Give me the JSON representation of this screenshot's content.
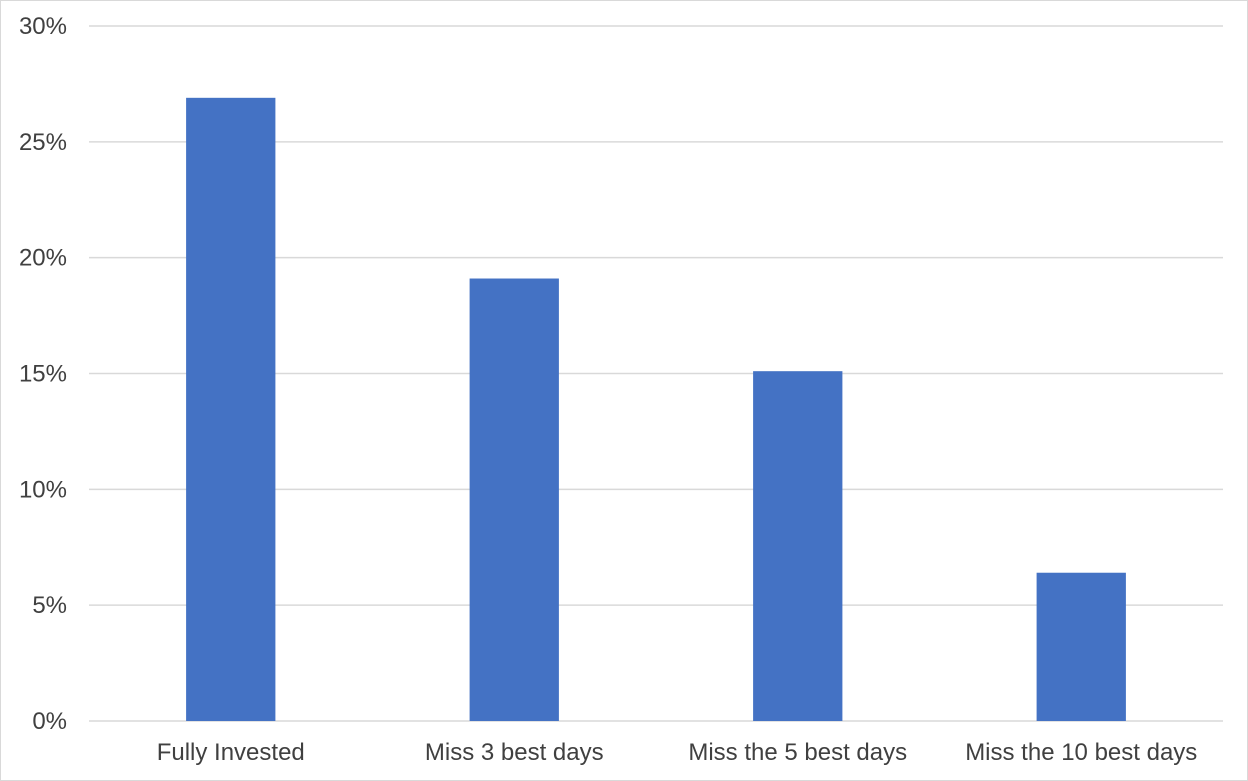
{
  "chart_data": {
    "type": "bar",
    "categories": [
      "Fully Invested",
      "Miss 3 best days",
      "Miss the 5 best days",
      "Miss the 10 best days"
    ],
    "values": [
      26.9,
      19.1,
      15.1,
      6.4
    ],
    "ylim": [
      0,
      30
    ],
    "yticks": [
      0,
      5,
      10,
      15,
      20,
      25,
      30
    ],
    "ytick_labels": [
      "0%",
      "5%",
      "10%",
      "15%",
      "20%",
      "25%",
      "30%"
    ],
    "grid": true,
    "legend": "none",
    "colors": {
      "bar": "#4472c4",
      "grid": "#d9d9d9",
      "text": "#404040"
    }
  }
}
